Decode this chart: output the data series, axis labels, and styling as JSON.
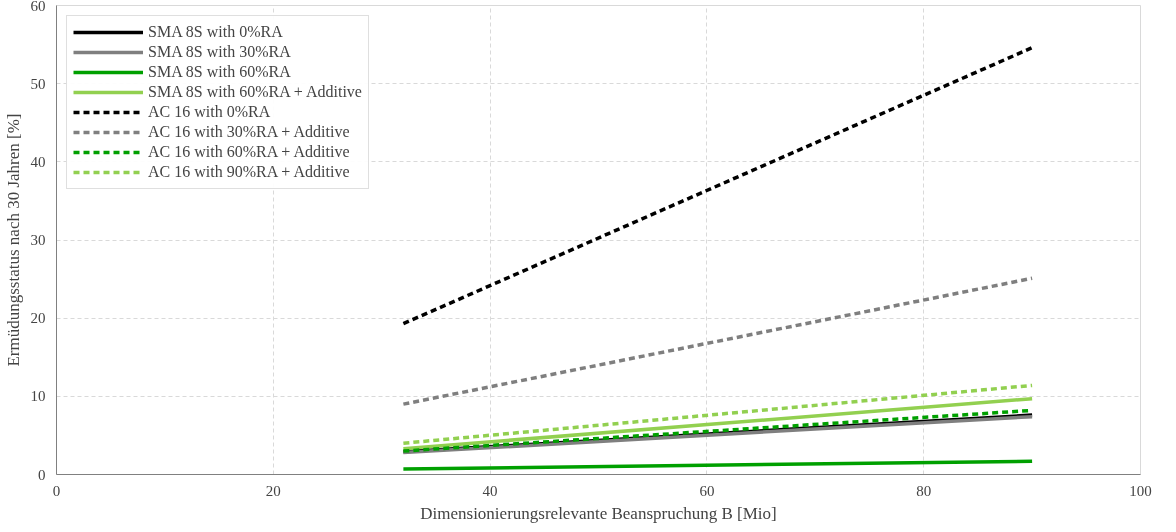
{
  "chart_data": {
    "type": "line",
    "xlabel": "Dimensionierungsrelevante Beanspruchung B [Mio]",
    "ylabel": "Ermüdungsstatus nach 30 Jahren [%]",
    "x": [
      32,
      90
    ],
    "xlim": [
      0,
      100
    ],
    "xticks": [
      0,
      20,
      40,
      60,
      80,
      100
    ],
    "ylim": [
      0,
      60
    ],
    "yticks": [
      0,
      10,
      20,
      30,
      40,
      50,
      60
    ],
    "grid": true,
    "legend": "top left",
    "marker": "none",
    "series": [
      {
        "name": "SMA 8S with 0%RA",
        "color": "#000000",
        "line_style": "solid",
        "values": [
          2.9,
          7.6
        ]
      },
      {
        "name": "SMA 8S with 30%RA",
        "color": "#7f7f7f",
        "line_style": "solid",
        "values": [
          2.8,
          7.4
        ]
      },
      {
        "name": "SMA 8S with 60%RA",
        "color": "#00a000",
        "line_style": "solid",
        "values": [
          0.7,
          1.7
        ]
      },
      {
        "name": "SMA 8S with 60%RA + Additive",
        "color": "#92d050",
        "line_style": "solid",
        "values": [
          3.3,
          9.7
        ]
      },
      {
        "name": "AC 16 with 0%RA",
        "color": "#000000",
        "line_style": "dashed",
        "values": [
          19.3,
          54.6
        ]
      },
      {
        "name": "AC 16 with 30%RA + Additive",
        "color": "#7f7f7f",
        "line_style": "dashed",
        "values": [
          9.0,
          25.1
        ]
      },
      {
        "name": "AC 16 with 60%RA + Additive",
        "color": "#00a000",
        "line_style": "dashed",
        "values": [
          3.0,
          8.2
        ]
      },
      {
        "name": "AC 16 with 90%RA + Additive",
        "color": "#92d050",
        "line_style": "dashed",
        "values": [
          4.0,
          11.4
        ]
      }
    ]
  }
}
